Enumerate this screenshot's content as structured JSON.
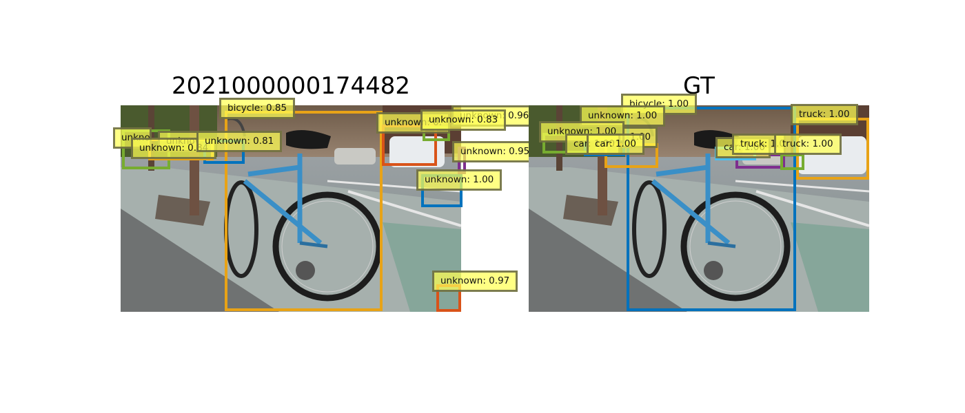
{
  "left_panel": {
    "title": "2021000000174482",
    "boxes": [
      {
        "label": "bicycle: 0.85",
        "color": "#e8a317"
      },
      {
        "label": "unknown: 0.96",
        "color": "#d95319"
      },
      {
        "label": "unknown: 0.83",
        "color": "#77ac30"
      },
      {
        "label": "unknown: 0.95",
        "color": "#7e2f8e"
      },
      {
        "label": "unknown: 1.00",
        "color": "#0072bd"
      },
      {
        "label": "unknown: 0.97",
        "color": "#d95319"
      },
      {
        "label": "unknown: 0.81",
        "color": "#0072bd"
      },
      {
        "label": "unknown: 0.84",
        "color": "#77ac30"
      },
      {
        "label": "unkno",
        "color": "#77ac30"
      },
      {
        "label": "unknown",
        "color": "#e8a317"
      },
      {
        "label": "unknown: 0.",
        "color": "#77ac30"
      }
    ]
  },
  "right_panel": {
    "title": "GT",
    "boxes": [
      {
        "label": "bicycle: 1.00",
        "color": "#0072bd"
      },
      {
        "label": "unknown: 1.00",
        "color": "#e8a317"
      },
      {
        "label": "unknown: 1.00",
        "color": "#77ac30"
      },
      {
        "label": "car: 1.00",
        "color": "#e8a317"
      },
      {
        "label": "car: 1.00",
        "color": "#0072bd"
      },
      {
        "label": "1.00",
        "color": "#77ac30"
      },
      {
        "label": "car: 1.00",
        "color": "#4dbeee"
      },
      {
        "label": "truck: 1.00",
        "color": "#7e2f8e"
      },
      {
        "label": "truck: 1.00",
        "color": "#77ac30"
      },
      {
        "label": "truck: 1.00",
        "color": "#e8a317"
      }
    ]
  }
}
